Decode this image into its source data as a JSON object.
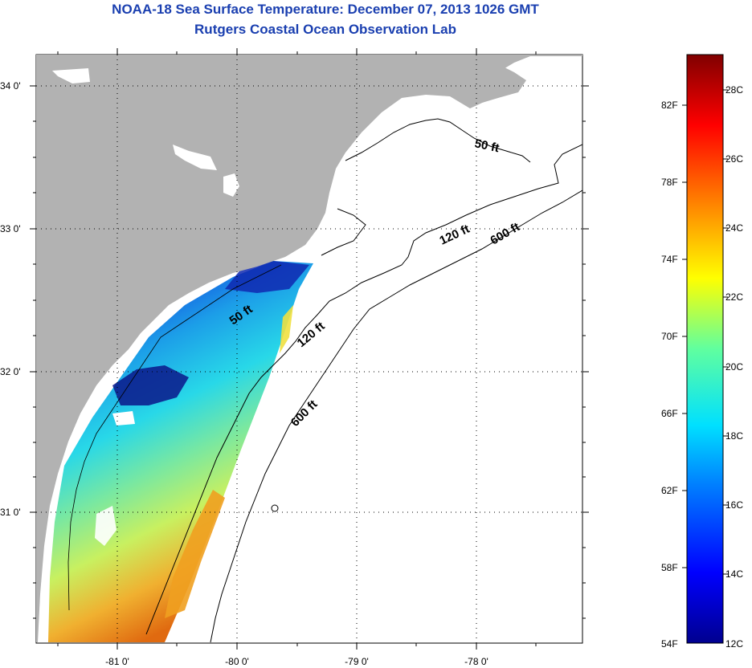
{
  "title_line1": "NOAA-18 Sea Surface Temperature:  December 07, 2013 1026 GMT",
  "title_line2": "Rutgers Coastal Ocean Observation Lab",
  "lat_labels": [
    "34 0'",
    "33 0'",
    "32 0'",
    "31 0'"
  ],
  "lon_labels": [
    "-81 0'",
    "-80 0'",
    "-79 0'",
    "-78 0'"
  ],
  "contour_labels": {
    "shelf_50": "50 ft",
    "shelf_120": "120 ft",
    "shelf_600": "600 ft",
    "inner_50": "50 ft",
    "inner_120": "120 ft",
    "inner_600": "600 ft"
  },
  "colorbar": {
    "fahrenheit": [
      "82F",
      "78F",
      "74F",
      "70F",
      "66F",
      "62F",
      "58F",
      "54F"
    ],
    "celsius": [
      "28C",
      "26C",
      "24C",
      "22C",
      "20C",
      "18C",
      "16C",
      "14C",
      "12C"
    ]
  },
  "colors": {
    "land": "#b2b2b2",
    "title": "#1a3fb0"
  }
}
